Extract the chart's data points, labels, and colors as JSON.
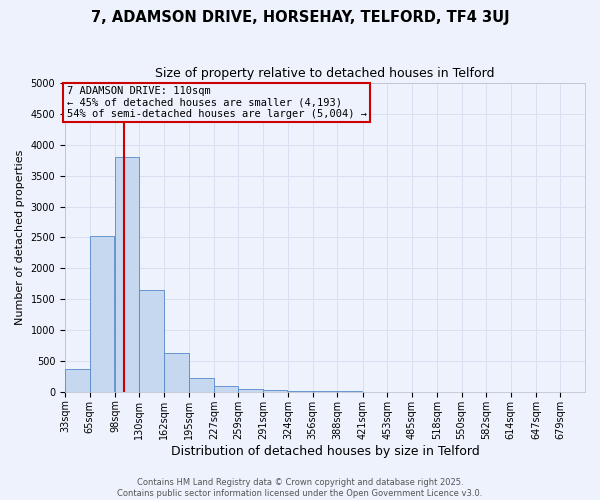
{
  "title_line1": "7, ADAMSON DRIVE, HORSEHAY, TELFORD, TF4 3UJ",
  "title_line2": "Size of property relative to detached houses in Telford",
  "xlabel": "Distribution of detached houses by size in Telford",
  "ylabel": "Number of detached properties",
  "bin_edges": [
    33,
    65,
    98,
    130,
    162,
    195,
    227,
    259,
    291,
    324,
    356,
    388,
    421,
    453,
    485,
    518,
    550,
    582,
    614,
    647,
    679
  ],
  "bar_heights": [
    375,
    2525,
    3800,
    1650,
    625,
    225,
    100,
    50,
    30,
    15,
    8,
    5,
    3,
    2,
    1,
    1,
    0,
    0,
    0,
    0
  ],
  "bar_color": "#c5d8f0",
  "bar_edge_color": "#5588cc",
  "red_line_x": 110,
  "red_line_color": "#cc0000",
  "annotation_text": "7 ADAMSON DRIVE: 110sqm\n← 45% of detached houses are smaller (4,193)\n54% of semi-detached houses are larger (5,004) →",
  "annotation_box_color": "#cc0000",
  "ylim": [
    0,
    5000
  ],
  "yticks": [
    0,
    500,
    1000,
    1500,
    2000,
    2500,
    3000,
    3500,
    4000,
    4500,
    5000
  ],
  "background_color": "#eef2fc",
  "grid_color": "#d8dff0",
  "footer_line1": "Contains HM Land Registry data © Crown copyright and database right 2025.",
  "footer_line2": "Contains public sector information licensed under the Open Government Licence v3.0.",
  "title_fontsize": 10.5,
  "subtitle_fontsize": 9,
  "ylabel_fontsize": 8,
  "xlabel_fontsize": 9,
  "tick_fontsize": 7,
  "annotation_fontsize": 7.5,
  "footer_fontsize": 6
}
